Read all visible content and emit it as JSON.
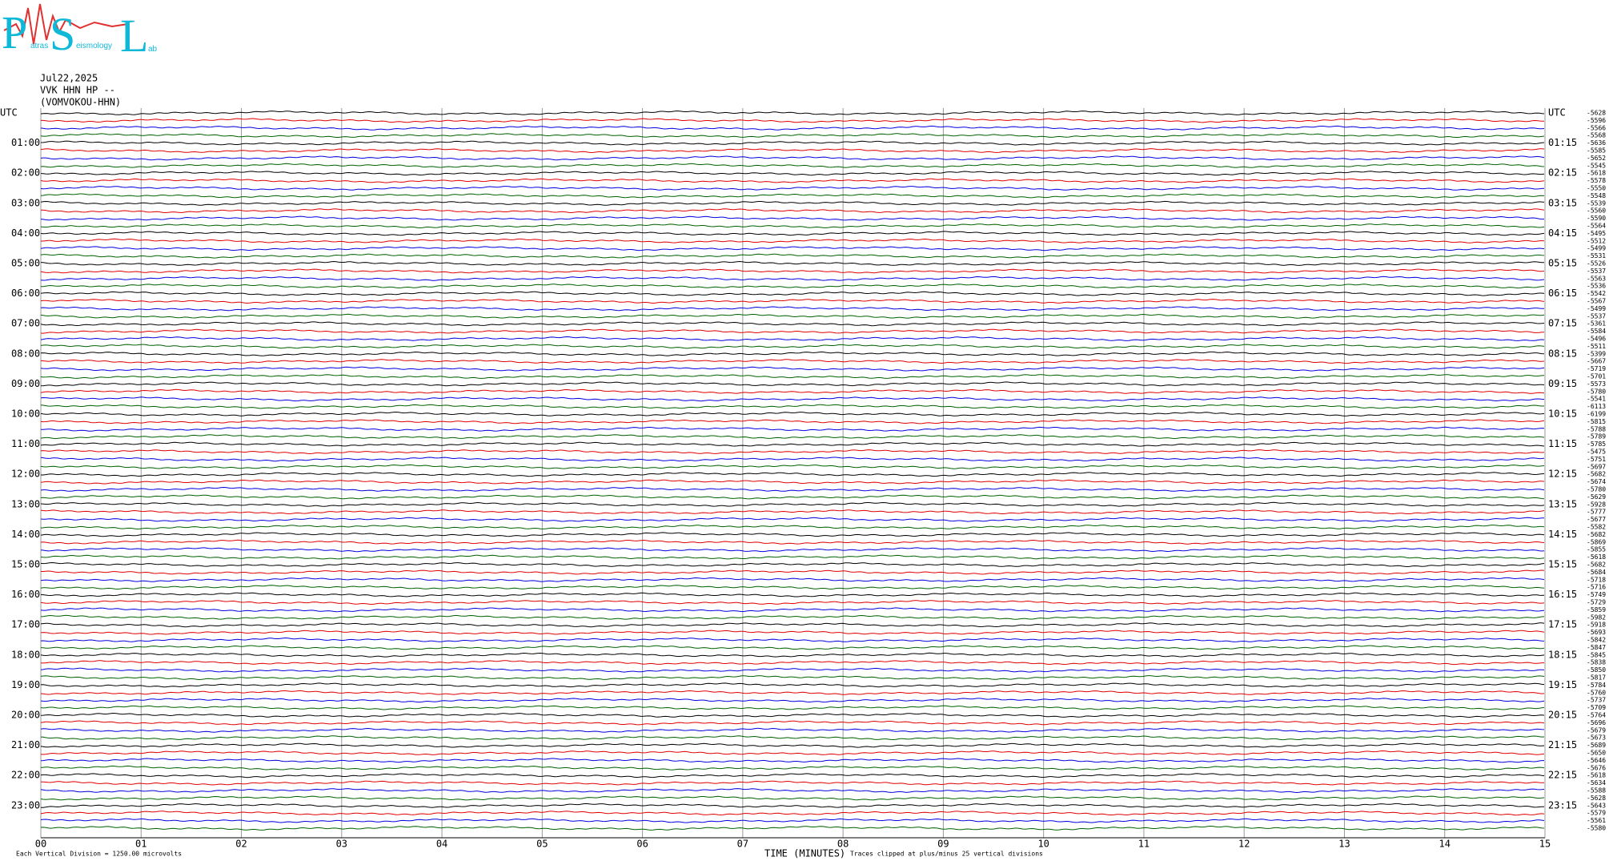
{
  "header": {
    "logo_letters": [
      "P",
      "S",
      "L"
    ],
    "logo_words": [
      "atras",
      "eismology",
      "ab"
    ],
    "date": "Jul22,2025",
    "station": "VVK HHN HP --",
    "station_name": "(VOMVOKOU-HHN)"
  },
  "chart_data": {
    "type": "helicorder",
    "xlabel": "TIME (MINUTES)",
    "clip_note": "Traces clipped at plus/minus 25 vertical divisions",
    "scale_note": "Each Vertical Division = 1250.00 microvolts",
    "xlim": [
      0,
      15
    ],
    "xticks": [
      {
        "value": 0,
        "label": "00"
      },
      {
        "value": 1,
        "label": "01"
      },
      {
        "value": 2,
        "label": "02"
      },
      {
        "value": 3,
        "label": "03"
      },
      {
        "value": 4,
        "label": "04"
      },
      {
        "value": 5,
        "label": "05"
      },
      {
        "value": 6,
        "label": "06"
      },
      {
        "value": 7,
        "label": "07"
      },
      {
        "value": 8,
        "label": "08"
      },
      {
        "value": 9,
        "label": "09"
      },
      10,
      11,
      12,
      13,
      14,
      15
    ],
    "grid": true,
    "colors": [
      "#000000",
      "#e00000",
      "#0000e0",
      "#006000"
    ],
    "left_labels": [
      "UTC",
      "01:00",
      "02:00",
      "03:00",
      "04:00",
      "05:00",
      "06:00",
      "07:00",
      "08:00",
      "09:00",
      "10:00",
      "11:00",
      "12:00",
      "13:00",
      "14:00",
      "15:00",
      "16:00",
      "17:00",
      "18:00",
      "19:00",
      "20:00",
      "21:00",
      "22:00",
      "23:00"
    ],
    "right_labels": [
      "UTC",
      "01:15",
      "02:15",
      "03:15",
      "04:15",
      "05:15",
      "06:15",
      "07:15",
      "08:15",
      "09:15",
      "10:15",
      "11:15",
      "12:15",
      "13:15",
      "14:15",
      "15:15",
      "16:15",
      "17:15",
      "18:15",
      "19:15",
      "20:15",
      "21:15",
      "22:15",
      "23:15"
    ],
    "trace_offsets": [
      -5628,
      -5596,
      -5566,
      -5568,
      -5636,
      -5585,
      -5652,
      -5545,
      -5618,
      -5578,
      -5550,
      -5548,
      -5539,
      -5560,
      -5590,
      -5564,
      -5495,
      -5512,
      -5499,
      -5531,
      -5526,
      -5537,
      -5563,
      -5536,
      -5542,
      -5567,
      -5499,
      -5537,
      -5361,
      -5584,
      -5496,
      -5511,
      -5399,
      -5667,
      -5719,
      -5701,
      -5573,
      -5780,
      -5541,
      -6113,
      -6199,
      -5815,
      -5788,
      -5789,
      -5785,
      -5475,
      -5751,
      -5697,
      -5682,
      -5674,
      -5780,
      -5629,
      -5928,
      -5777,
      -5677,
      -5582,
      -5682,
      -5869,
      -5855,
      -5618,
      -5682,
      -5684,
      -5718,
      -5716,
      -5749,
      -5729,
      -5859,
      -5982,
      -5918,
      -5693,
      -5842,
      -5847,
      -5845,
      -5838,
      -5850,
      -5817,
      -5784,
      -5760,
      -5737,
      -5709,
      -5764,
      -5696,
      -5679,
      -5673,
      -5689,
      -5650,
      -5646,
      -5676,
      -5618,
      -5634,
      -5588,
      -5628,
      -5643,
      -5579,
      -5561,
      -5580
    ]
  }
}
